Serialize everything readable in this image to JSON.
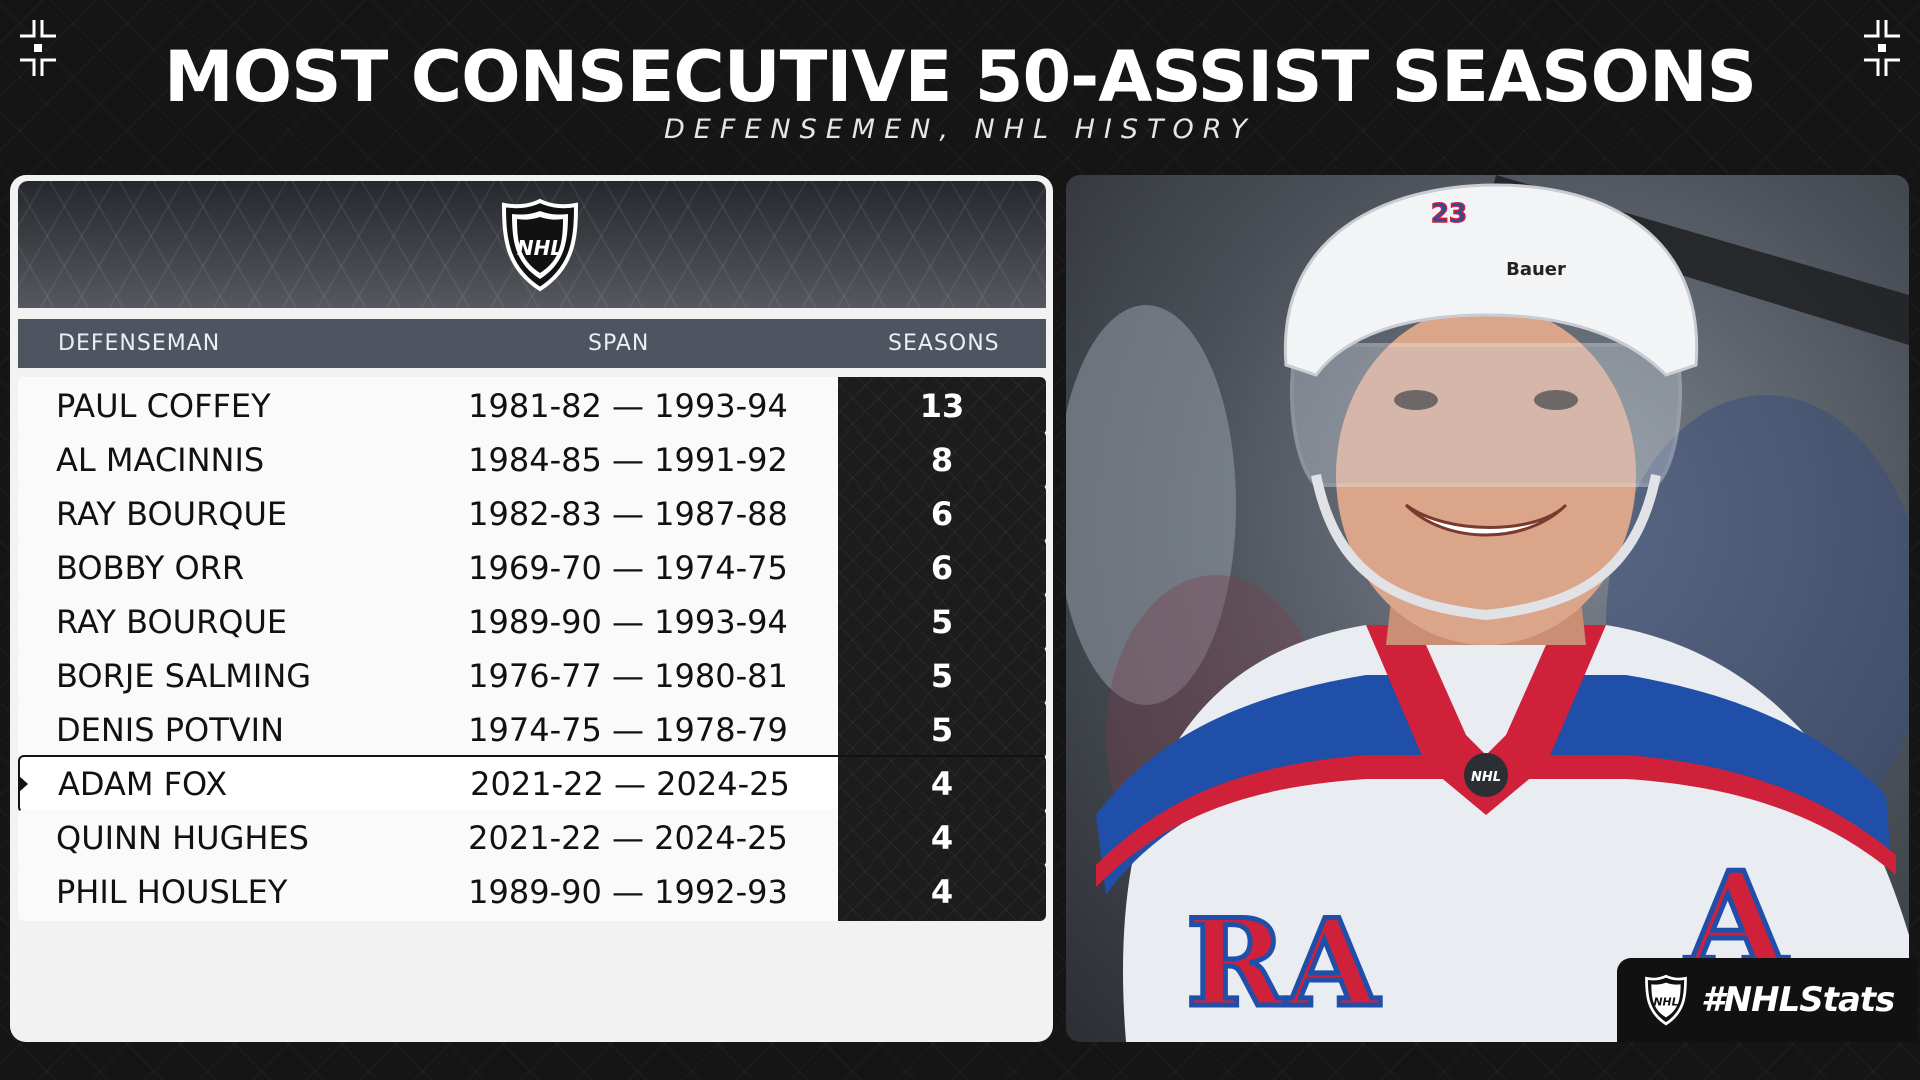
{
  "title": "MOST CONSECUTIVE 50-ASSIST SEASONS",
  "subtitle": "DEFENSEMEN, NHL HISTORY",
  "logo_text": "NHL",
  "table": {
    "headers": {
      "name": "DEFENSEMAN",
      "span": "SPAN",
      "seasons": "SEASONS"
    },
    "rows": [
      {
        "name": "PAUL COFFEY",
        "span": "1981-82 — 1993-94",
        "seasons": "13"
      },
      {
        "name": "AL MACINNIS",
        "span": "1984-85 — 1991-92",
        "seasons": "8"
      },
      {
        "name": "RAY BOURQUE",
        "span": "1982-83 — 1987-88",
        "seasons": "6"
      },
      {
        "name": "BOBBY ORR",
        "span": "1969-70 — 1974-75",
        "seasons": "6"
      },
      {
        "name": "RAY BOURQUE",
        "span": "1989-90 — 1993-94",
        "seasons": "5"
      },
      {
        "name": "BORJE SALMING",
        "span": "1976-77 — 1980-81",
        "seasons": "5"
      },
      {
        "name": "DENIS POTVIN",
        "span": "1974-75 — 1978-79",
        "seasons": "5"
      },
      {
        "name": "ADAM FOX",
        "span": "2021-22 — 2024-25",
        "seasons": "4",
        "highlight": true
      },
      {
        "name": "QUINN HUGHES",
        "span": "2021-22 — 2024-25",
        "seasons": "4"
      },
      {
        "name": "PHIL HOUSLEY",
        "span": "1989-90 — 1992-93",
        "seasons": "4"
      }
    ]
  },
  "photo": {
    "helmet_brand": "Bauer",
    "helmet_number": "23",
    "jersey_letters": "RA",
    "captain_letter": "A"
  },
  "badge": {
    "text": "#NHLStats"
  },
  "colors": {
    "background": "#151515",
    "accent_red": "#d0213a",
    "accent_blue": "#1f4fa8",
    "header_row": "#4f5560"
  }
}
